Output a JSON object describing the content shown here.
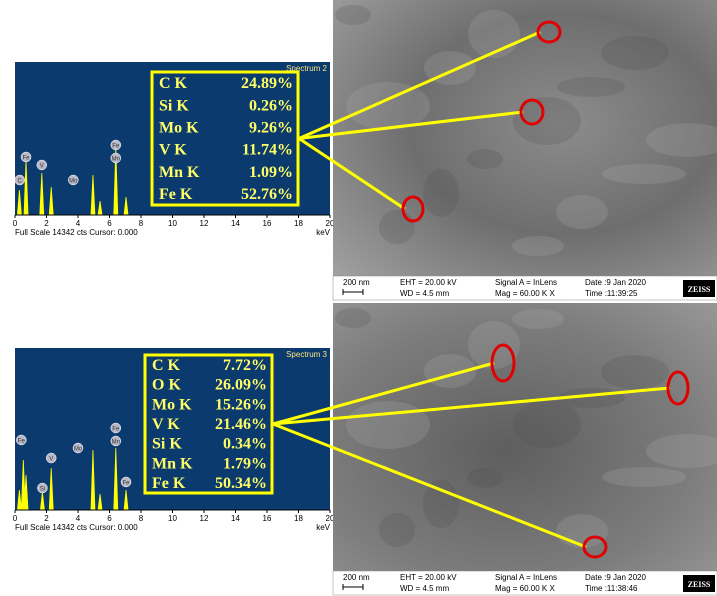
{
  "panels": [
    {
      "spectrum": {
        "title": "Spectrum 2",
        "x_labels": [
          "0",
          "2",
          "4",
          "6",
          "8",
          "10",
          "12",
          "14",
          "16",
          "18",
          "20"
        ],
        "unit": "keV",
        "caption": "Full Scale 14342 cts Cursor: 0.000",
        "peak_labels": [
          "C",
          "Fe",
          "V",
          "Mo",
          "Fe",
          "Mn"
        ],
        "composition": [
          {
            "element": "C  K",
            "value": "24.89%"
          },
          {
            "element": "Si  K",
            "value": "0.26%"
          },
          {
            "element": "Mo K",
            "value": "9.26%"
          },
          {
            "element": "V  K",
            "value": "11.74%"
          },
          {
            "element": "Mn K",
            "value": "1.09%"
          },
          {
            "element": "Fe  K",
            "value": "52.76%"
          }
        ]
      },
      "sem": {
        "scale": "200 nm",
        "eht": "EHT = 20.00 kV",
        "wd": "WD = 4.5 mm",
        "signal": "Signal A = InLens",
        "mag": "Mag =  60.00 K X",
        "date": "Date :9 Jan 2020",
        "time": "Time :11:39:25",
        "brand": "ZEISS"
      }
    },
    {
      "spectrum": {
        "title": "Spectrum 3",
        "x_labels": [
          "0",
          "2",
          "4",
          "6",
          "8",
          "10",
          "12",
          "14",
          "16",
          "18",
          "20"
        ],
        "unit": "keV",
        "caption": "Full Scale 14342 cts Cursor: 0.000",
        "peak_labels": [
          "Fe",
          "Si",
          "V",
          "Mo",
          "Fe",
          "Mn",
          "Fe"
        ],
        "composition": [
          {
            "element": "C  K",
            "value": "7.72%"
          },
          {
            "element": "O  K",
            "value": "26.09%"
          },
          {
            "element": "Mo K",
            "value": "15.26%"
          },
          {
            "element": "V  K",
            "value": "21.46%"
          },
          {
            "element": "Si  K",
            "value": "0.34%"
          },
          {
            "element": "Mn K",
            "value": "1.79%"
          },
          {
            "element": "Fe  K",
            "value": "50.34%"
          }
        ]
      },
      "sem": {
        "scale": "200 nm",
        "eht": "EHT = 20.00 kV",
        "wd": "WD = 4.5 mm",
        "signal": "Signal A = InLens",
        "mag": "Mag =  60.00 K X",
        "date": "Date :9 Jan 2020",
        "time": "Time :11:38:46",
        "brand": "ZEISS"
      }
    }
  ]
}
